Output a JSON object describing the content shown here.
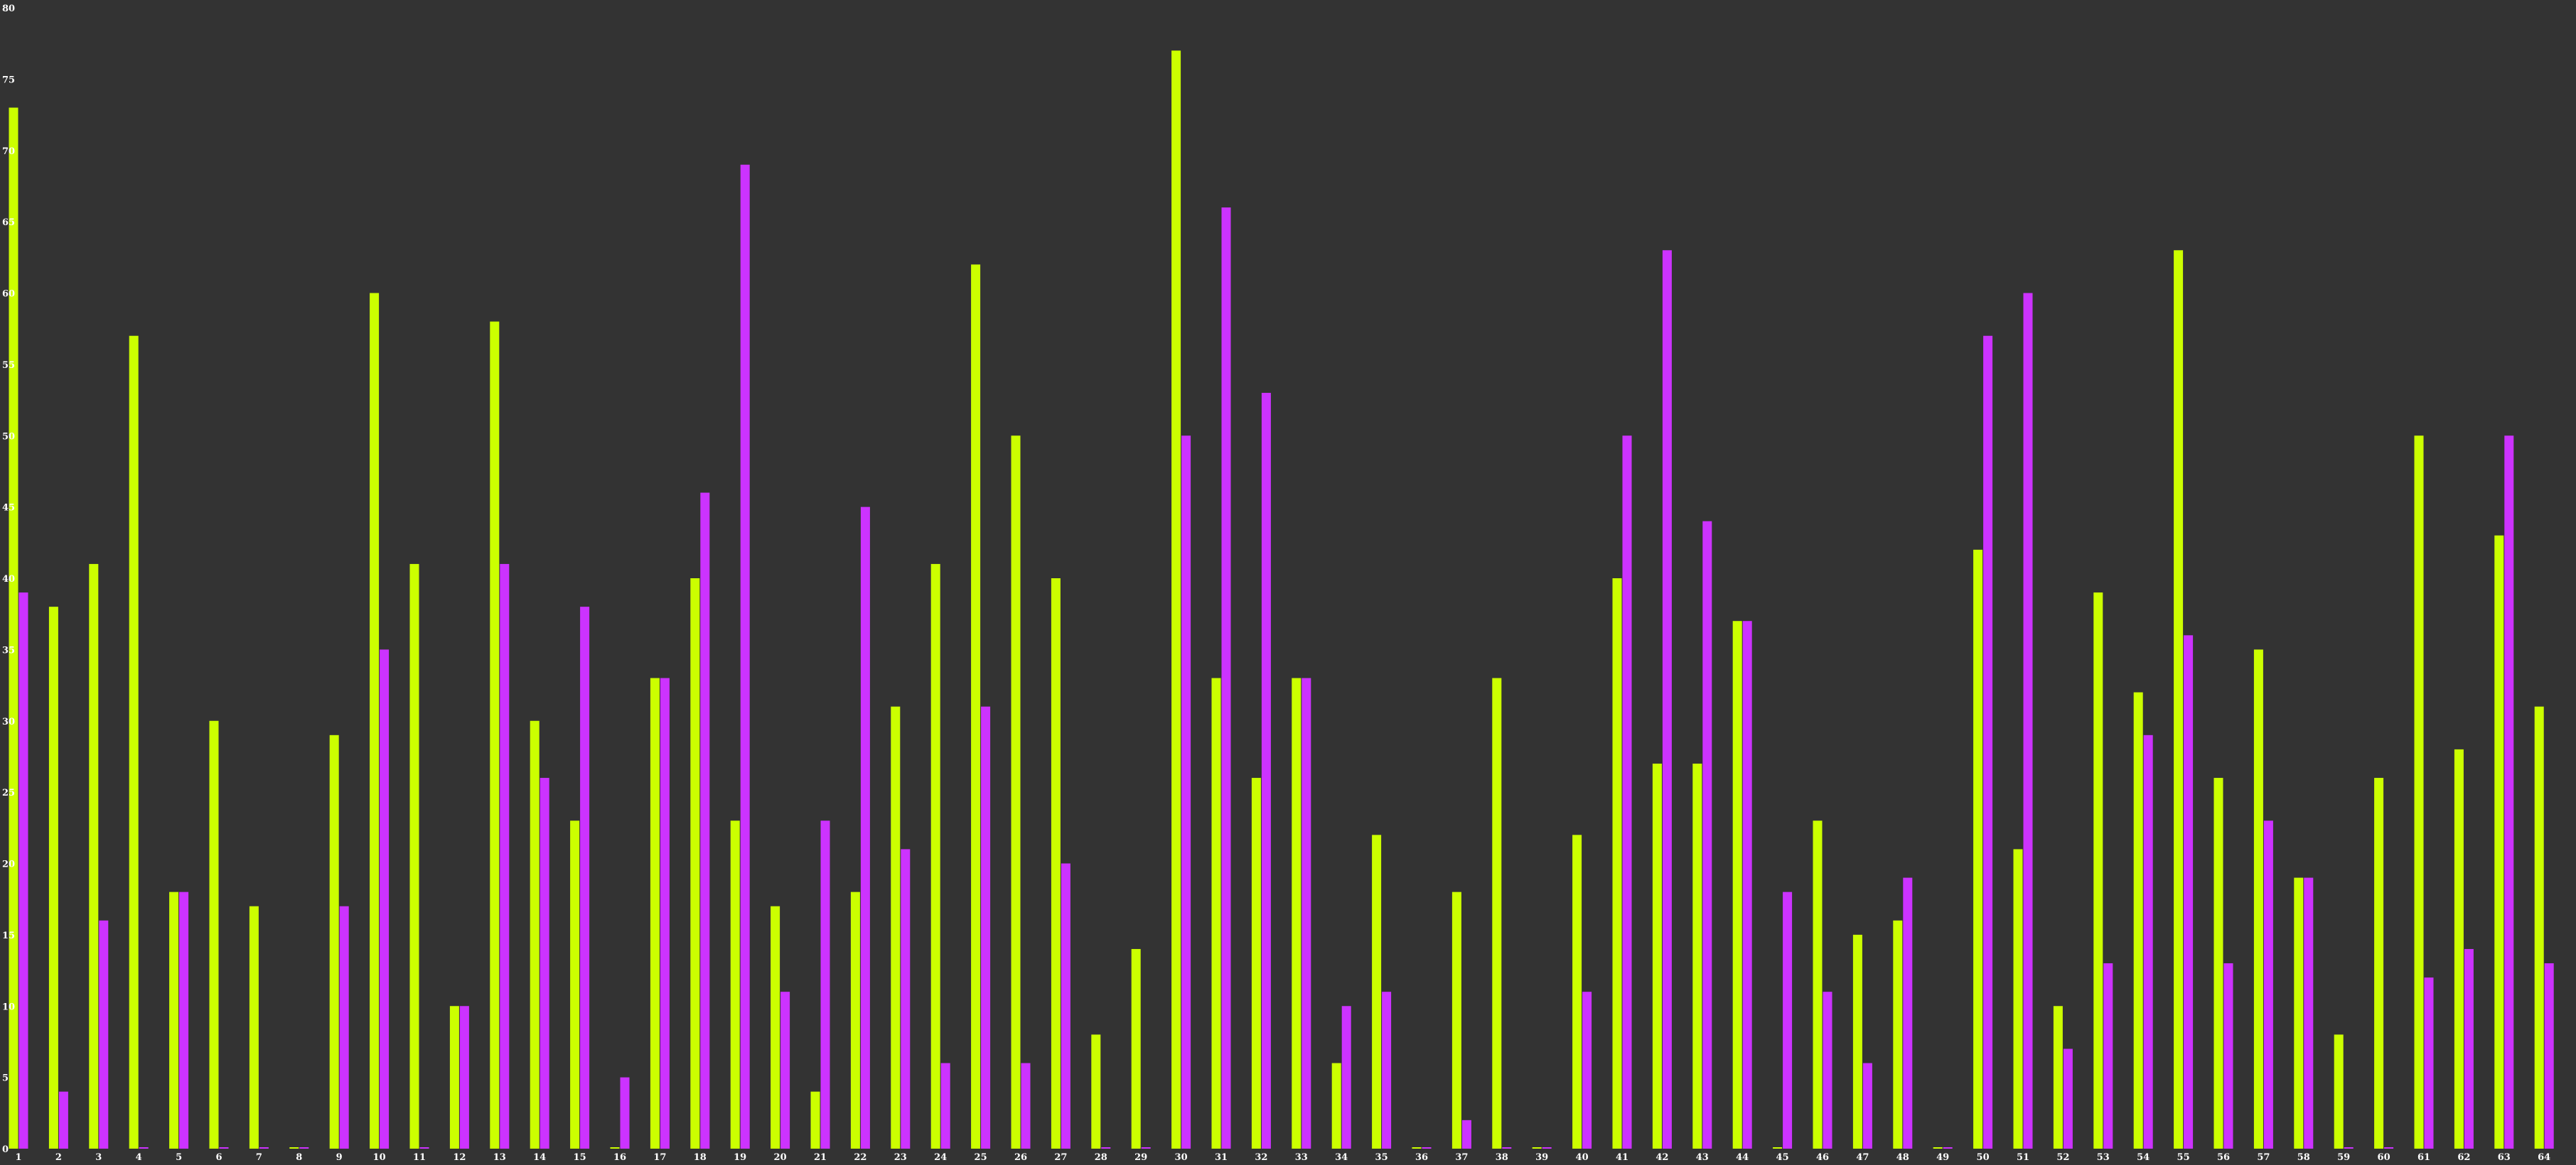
{
  "chart_data": {
    "type": "bar",
    "categories": [
      "1",
      "2",
      "3",
      "4",
      "5",
      "6",
      "7",
      "8",
      "9",
      "10",
      "11",
      "12",
      "13",
      "14",
      "15",
      "16",
      "17",
      "18",
      "19",
      "20",
      "21",
      "22",
      "23",
      "24",
      "25",
      "26",
      "27",
      "28",
      "29",
      "30",
      "31",
      "32",
      "33",
      "34",
      "35",
      "36",
      "37",
      "38",
      "39",
      "40",
      "41",
      "42",
      "43",
      "44",
      "45",
      "46",
      "47",
      "48",
      "49",
      "50",
      "51",
      "52",
      "53",
      "54",
      "55",
      "56",
      "57",
      "58",
      "59",
      "60",
      "61",
      "62",
      "63",
      "64"
    ],
    "series": [
      {
        "color": "#ccff00",
        "values": [
          73,
          38,
          41,
          57,
          18,
          30,
          17,
          0,
          29,
          60,
          41,
          10,
          58,
          30,
          23,
          0,
          33,
          40,
          23,
          17,
          4,
          18,
          31,
          41,
          62,
          50,
          40,
          8,
          14,
          77,
          33,
          26,
          33,
          6,
          22,
          0,
          18,
          33,
          0,
          22,
          40,
          27,
          27,
          37,
          0,
          23,
          15,
          16,
          0,
          42,
          21,
          10,
          39,
          32,
          63,
          26,
          35,
          19,
          8,
          26,
          50,
          28,
          43,
          31
        ]
      },
      {
        "color": "#cc33ff",
        "values": [
          39,
          4,
          16,
          0,
          18,
          0,
          0,
          0,
          17,
          35,
          0,
          10,
          41,
          26,
          38,
          5,
          33,
          46,
          69,
          11,
          23,
          45,
          21,
          6,
          31,
          6,
          20,
          0,
          0,
          50,
          66,
          53,
          33,
          10,
          11,
          0,
          2,
          0,
          0,
          11,
          50,
          63,
          44,
          37,
          18,
          11,
          6,
          19,
          0,
          57,
          60,
          7,
          13,
          29,
          36,
          13,
          23,
          19,
          0,
          0,
          12,
          14,
          50,
          13
        ]
      }
    ],
    "ylim": [
      0,
      80
    ],
    "yticks": [
      "0",
      "5",
      "10",
      "15",
      "20",
      "25",
      "30",
      "35",
      "40",
      "45",
      "50",
      "55",
      "60",
      "65",
      "70",
      "75",
      "80"
    ],
    "grid": false,
    "legend": "none"
  }
}
